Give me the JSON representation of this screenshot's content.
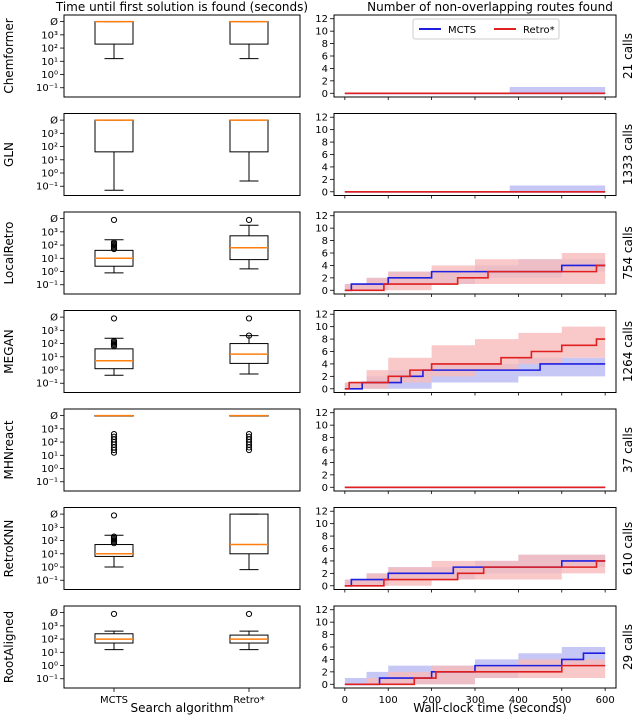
{
  "chart_data": {
    "type": "box+step",
    "left": {
      "title": "Time until first solution is found (seconds)",
      "xlabel": "Search algorithm",
      "categories": [
        "MCTS",
        "Retro*"
      ],
      "yscale": "log",
      "ytick_labels": [
        "Ø",
        "10³",
        "10²",
        "10¹",
        "10⁰",
        "10⁻¹"
      ],
      "ytick_exponents": [
        4,
        3,
        2,
        1,
        0,
        -1
      ],
      "ylim_exp": [
        -1.7,
        4.5
      ]
    },
    "right": {
      "title": "Number of non-overlapping routes found",
      "xlabel": "Wall-clock time (seconds)",
      "xticks": [
        0,
        100,
        200,
        300,
        400,
        500,
        600
      ],
      "xlim": [
        -25,
        625
      ],
      "yticks": [
        0,
        2,
        4,
        6,
        8,
        10,
        12
      ],
      "ylim": [
        -0.6,
        12.6
      ],
      "legend": [
        "MCTS",
        "Retro*"
      ],
      "series_colors": {
        "MCTS": "#1f1fe0",
        "Retro*": "#e01f1f"
      },
      "band_colors": {
        "MCTS": "#b9b9f4",
        "Retro*": "#f7bcbc"
      }
    },
    "panels": [
      {
        "model": "Chemformer",
        "calls": "21 calls",
        "boxes": [
          {
            "q1": 2.3,
            "median": 4,
            "q3": 4,
            "whislo": 1.2,
            "whishi": 4,
            "fliers": []
          },
          {
            "q1": 2.3,
            "median": 4,
            "q3": 4,
            "whislo": 1.2,
            "whishi": 4,
            "fliers": []
          }
        ],
        "mcts": {
          "x": [
            0,
            600
          ],
          "y": [
            0,
            0
          ]
        },
        "retro": {
          "x": [
            0,
            600
          ],
          "y": [
            0,
            0
          ]
        },
        "mcts_band": {
          "x": [
            0,
            380,
            380,
            600
          ],
          "lo": [
            0,
            0,
            0,
            0
          ],
          "hi": [
            0,
            0,
            1,
            1
          ]
        },
        "retro_band": null
      },
      {
        "model": "GLN",
        "calls": "1333 calls",
        "boxes": [
          {
            "q1": 1.6,
            "median": 4,
            "q3": 4,
            "whislo": -1.3,
            "whishi": 4,
            "fliers": []
          },
          {
            "q1": 1.6,
            "median": 4,
            "q3": 4,
            "whislo": -0.6,
            "whishi": 4,
            "fliers": []
          }
        ],
        "mcts": {
          "x": [
            0,
            600
          ],
          "y": [
            0,
            0
          ]
        },
        "retro": {
          "x": [
            0,
            600
          ],
          "y": [
            0,
            0
          ]
        },
        "mcts_band": {
          "x": [
            0,
            380,
            380,
            600
          ],
          "lo": [
            0,
            0,
            0,
            0
          ],
          "hi": [
            0,
            0,
            1,
            1
          ]
        },
        "retro_band": null
      },
      {
        "model": "LocalRetro",
        "calls": "754 calls",
        "boxes": [
          {
            "q1": 0.4,
            "median": 1.0,
            "q3": 1.6,
            "whislo": -0.1,
            "whishi": 2.4,
            "fliers": [
              1.7,
              1.8,
              1.9,
              2.0,
              2.1,
              2.2,
              3.9
            ]
          },
          {
            "q1": 0.9,
            "median": 1.8,
            "q3": 2.7,
            "whislo": 0.2,
            "whishi": 3.5,
            "fliers": [
              3.9
            ]
          }
        ],
        "mcts": {
          "x": [
            0,
            15,
            40,
            100,
            150,
            200,
            280,
            380,
            500,
            580,
            600
          ],
          "y": [
            0,
            1,
            1,
            2,
            2,
            3,
            3,
            3,
            4,
            4,
            4
          ]
        },
        "retro": {
          "x": [
            0,
            15,
            90,
            120,
            220,
            260,
            330,
            400,
            480,
            580,
            600
          ],
          "y": [
            0,
            0,
            1,
            1,
            1,
            2,
            3,
            3,
            3,
            4,
            4
          ]
        },
        "mcts_band": {
          "x": [
            0,
            50,
            100,
            200,
            300,
            400,
            500,
            600
          ],
          "lo": [
            0,
            0,
            1,
            1,
            2,
            2,
            3,
            3
          ],
          "hi": [
            1,
            2,
            3,
            3,
            4,
            5,
            5,
            5
          ]
        },
        "retro_band": {
          "x": [
            0,
            50,
            100,
            200,
            300,
            400,
            500,
            600
          ],
          "lo": [
            0,
            0,
            0,
            1,
            1,
            1,
            1,
            2
          ],
          "hi": [
            1,
            2,
            3,
            4,
            5,
            5,
            6,
            7
          ]
        }
      },
      {
        "model": "MEGAN",
        "calls": "1264 calls",
        "boxes": [
          {
            "q1": 0.1,
            "median": 0.7,
            "q3": 1.6,
            "whislo": -0.4,
            "whishi": 2.4,
            "fliers": [
              1.8,
              1.9,
              2.0,
              2.1,
              2.2,
              3.9
            ]
          },
          {
            "q1": 0.5,
            "median": 1.2,
            "q3": 2.0,
            "whislo": -0.3,
            "whishi": 2.6,
            "fliers": [
              2.6,
              3.9
            ]
          }
        ],
        "mcts": {
          "x": [
            0,
            15,
            40,
            100,
            130,
            180,
            300,
            370,
            450,
            580,
            600
          ],
          "y": [
            0,
            0,
            1,
            1,
            2,
            3,
            3,
            3,
            4,
            4,
            4
          ]
        },
        "retro": {
          "x": [
            0,
            10,
            60,
            100,
            150,
            200,
            260,
            360,
            430,
            500,
            580,
            600
          ],
          "y": [
            0,
            1,
            1,
            2,
            3,
            4,
            4,
            5,
            6,
            7,
            8,
            8
          ]
        },
        "mcts_band": {
          "x": [
            0,
            50,
            100,
            200,
            300,
            400,
            500,
            600
          ],
          "lo": [
            0,
            0,
            0,
            1,
            1,
            2,
            2,
            2
          ],
          "hi": [
            1,
            2,
            3,
            4,
            4,
            5,
            5,
            5
          ]
        },
        "retro_band": {
          "x": [
            0,
            50,
            100,
            200,
            300,
            400,
            500,
            600
          ],
          "lo": [
            0,
            0,
            1,
            2,
            3,
            4,
            5,
            6
          ],
          "hi": [
            1,
            3,
            5,
            7,
            8,
            9,
            10,
            11
          ]
        }
      },
      {
        "model": "MHNreact",
        "calls": "37 calls",
        "boxes": [
          {
            "q1": 4,
            "median": 4,
            "q3": 4,
            "whislo": 4,
            "whishi": 4,
            "fliers": [
              1.2,
              1.4,
              1.6,
              1.8,
              2.0,
              2.2,
              2.4,
              2.6
            ]
          },
          {
            "q1": 4,
            "median": 4,
            "q3": 4,
            "whislo": 4,
            "whishi": 4,
            "fliers": [
              1.4,
              1.6,
              1.8,
              2.0,
              2.2,
              2.4,
              2.6
            ]
          }
        ],
        "mcts": {
          "x": [
            0,
            600
          ],
          "y": [
            0,
            0
          ]
        },
        "retro": {
          "x": [
            0,
            600
          ],
          "y": [
            0,
            0
          ]
        },
        "mcts_band": null,
        "retro_band": null
      },
      {
        "model": "RetroKNN",
        "calls": "610 calls",
        "boxes": [
          {
            "q1": 0.8,
            "median": 1.0,
            "q3": 1.7,
            "whislo": 0.0,
            "whishi": 2.4,
            "fliers": [
              1.8,
              1.9,
              2.0,
              2.1,
              2.2,
              2.3,
              3.9
            ]
          },
          {
            "q1": 1.0,
            "median": 1.7,
            "q3": 4,
            "whislo": -0.2,
            "whishi": 4,
            "fliers": []
          }
        ],
        "mcts": {
          "x": [
            0,
            15,
            40,
            100,
            150,
            250,
            330,
            450,
            500,
            580,
            600
          ],
          "y": [
            0,
            1,
            1,
            2,
            2,
            3,
            3,
            3,
            4,
            4,
            4
          ]
        },
        "retro": {
          "x": [
            0,
            15,
            90,
            120,
            220,
            260,
            320,
            400,
            490,
            580,
            600
          ],
          "y": [
            0,
            0,
            1,
            1,
            1,
            2,
            3,
            3,
            3,
            4,
            4
          ]
        },
        "mcts_band": {
          "x": [
            0,
            50,
            100,
            200,
            300,
            400,
            500,
            600
          ],
          "lo": [
            0,
            0,
            1,
            1,
            2,
            2,
            3,
            3
          ],
          "hi": [
            1,
            2,
            3,
            3,
            4,
            5,
            5,
            5
          ]
        },
        "retro_band": {
          "x": [
            0,
            50,
            100,
            200,
            300,
            400,
            500,
            600
          ],
          "lo": [
            0,
            0,
            0,
            1,
            1,
            1,
            2,
            2
          ],
          "hi": [
            1,
            2,
            3,
            4,
            4,
            5,
            5,
            6
          ]
        }
      },
      {
        "model": "RootAligned",
        "calls": "29 calls",
        "boxes": [
          {
            "q1": 1.7,
            "median": 2.0,
            "q3": 2.4,
            "whislo": 1.2,
            "whishi": 2.6,
            "fliers": [
              3.9
            ]
          },
          {
            "q1": 1.7,
            "median": 2.0,
            "q3": 2.3,
            "whislo": 1.2,
            "whishi": 2.6,
            "fliers": [
              3.9
            ]
          }
        ],
        "mcts": {
          "x": [
            0,
            60,
            80,
            160,
            200,
            300,
            400,
            500,
            550,
            600
          ],
          "y": [
            0,
            0,
            1,
            1,
            2,
            3,
            3,
            4,
            5,
            5
          ]
        },
        "retro": {
          "x": [
            0,
            70,
            160,
            210,
            300,
            500,
            600
          ],
          "y": [
            0,
            0,
            1,
            2,
            2,
            3,
            3
          ]
        },
        "mcts_band": {
          "x": [
            0,
            50,
            100,
            200,
            300,
            400,
            500,
            600
          ],
          "lo": [
            0,
            0,
            0,
            0,
            1,
            2,
            3,
            3
          ],
          "hi": [
            1,
            2,
            3,
            3,
            4,
            5,
            6,
            7
          ]
        },
        "retro_band": {
          "x": [
            0,
            50,
            100,
            200,
            300,
            400,
            500,
            600
          ],
          "lo": [
            0,
            0,
            0,
            0,
            1,
            1,
            1,
            1
          ],
          "hi": [
            0,
            1,
            2,
            3,
            3,
            4,
            4,
            4
          ]
        }
      }
    ]
  }
}
